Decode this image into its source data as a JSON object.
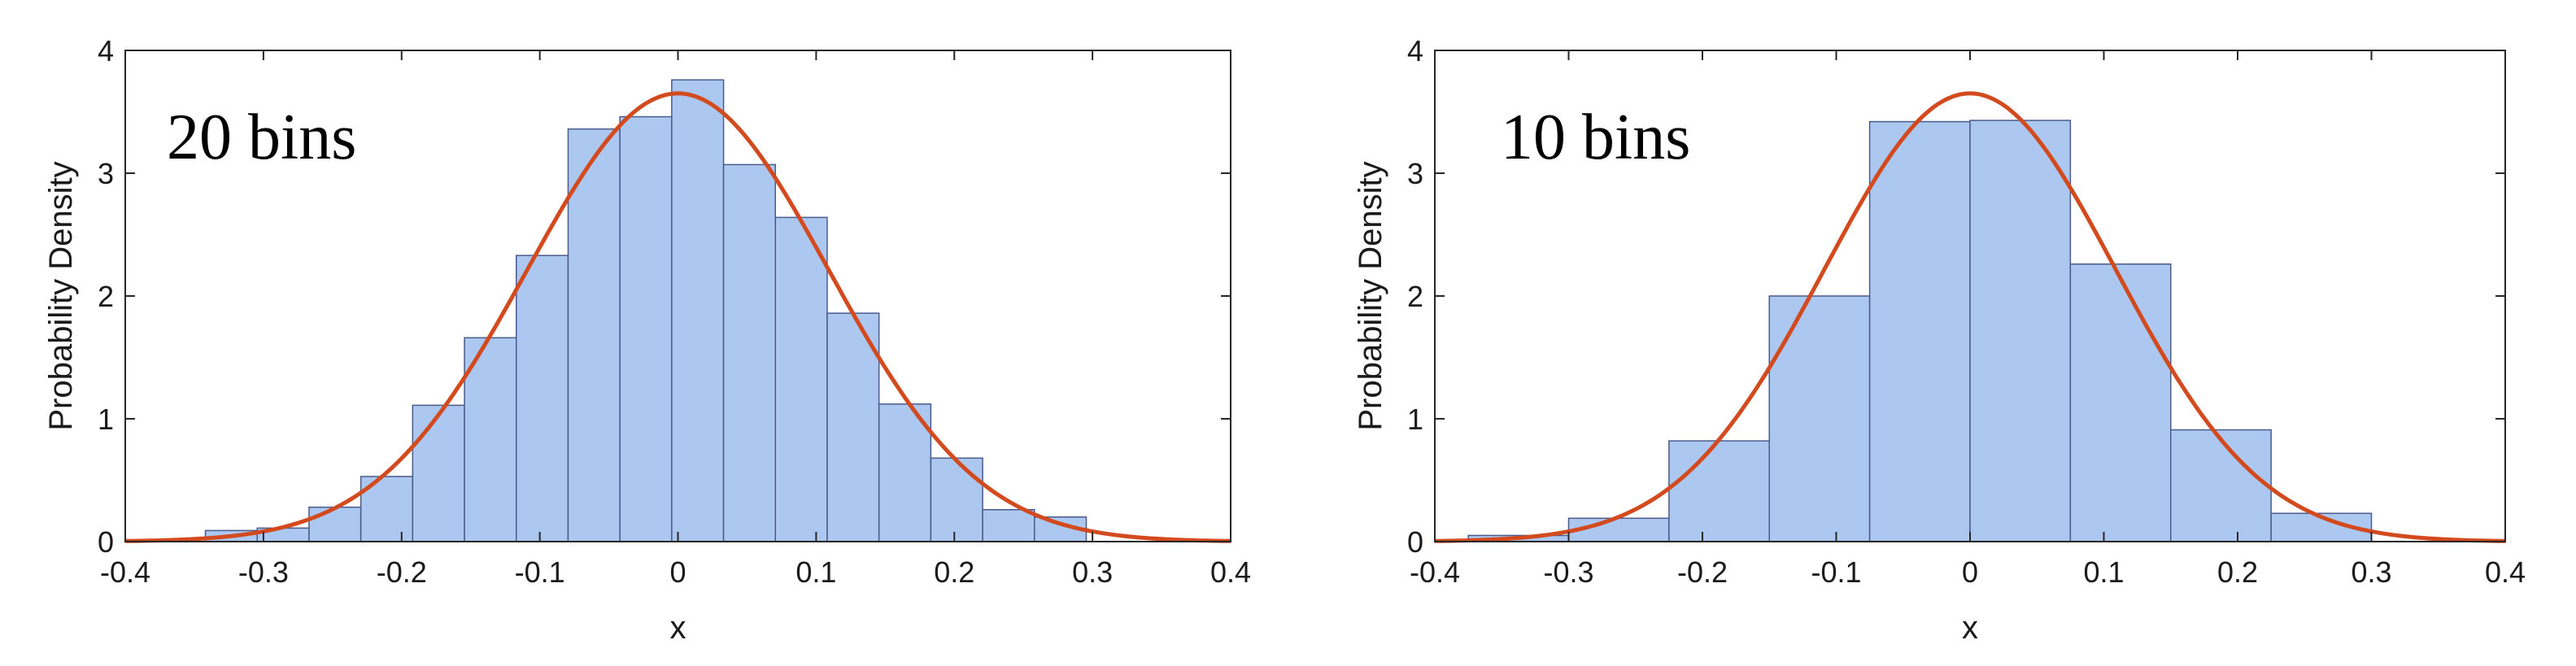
{
  "chart_data": [
    {
      "type": "bar",
      "annotation": "20 bins",
      "xlabel": "x",
      "ylabel": "Probability Density",
      "xlim": [
        -0.4,
        0.4
      ],
      "ylim": [
        0,
        4
      ],
      "xticks": [
        "-0.4",
        "-0.3",
        "-0.2",
        "-0.1",
        "0",
        "0.1",
        "0.2",
        "0.3",
        "0.4"
      ],
      "yticks": [
        "0",
        "1",
        "2",
        "3",
        "4"
      ],
      "bin_edges": [
        -0.342,
        -0.3045,
        -0.267,
        -0.2295,
        -0.192,
        -0.1545,
        -0.117,
        -0.0795,
        -0.042,
        -0.0045,
        0.033,
        0.0705,
        0.108,
        0.1455,
        0.183,
        0.2205,
        0.258,
        0.2955
      ],
      "values": [
        0.09,
        0.11,
        0.28,
        0.53,
        1.11,
        1.66,
        2.33,
        3.36,
        3.46,
        3.76,
        3.07,
        2.64,
        1.86,
        1.12,
        0.68,
        0.26,
        0.2
      ],
      "curve": {
        "name": "normal pdf",
        "mean": 0,
        "std": 0.109,
        "peak": 3.65
      },
      "colors": {
        "bar_fill": "#adc8f0",
        "bar_edge": "#4a5a8a",
        "curve": "#d24a1e"
      }
    },
    {
      "type": "bar",
      "annotation": "10 bins",
      "xlabel": "x",
      "ylabel": "Probability Density",
      "xlim": [
        -0.4,
        0.4
      ],
      "ylim": [
        0,
        4
      ],
      "xticks": [
        "-0.4",
        "-0.3",
        "-0.2",
        "-0.1",
        "0",
        "0.1",
        "0.2",
        "0.3",
        "0.4"
      ],
      "yticks": [
        "0",
        "1",
        "2",
        "3",
        "4"
      ],
      "bin_edges": [
        -0.375,
        -0.3,
        -0.225,
        -0.15,
        -0.075,
        0,
        0.075,
        0.15,
        0.225,
        0.3
      ],
      "values": [
        0.05,
        0.19,
        0.82,
        2.0,
        3.42,
        3.43,
        2.26,
        0.91,
        0.23
      ],
      "curve": {
        "name": "normal pdf",
        "mean": 0,
        "std": 0.109,
        "peak": 3.65
      },
      "colors": {
        "bar_fill": "#adc8f0",
        "bar_edge": "#4a5a8a",
        "curve": "#d24a1e"
      }
    }
  ]
}
